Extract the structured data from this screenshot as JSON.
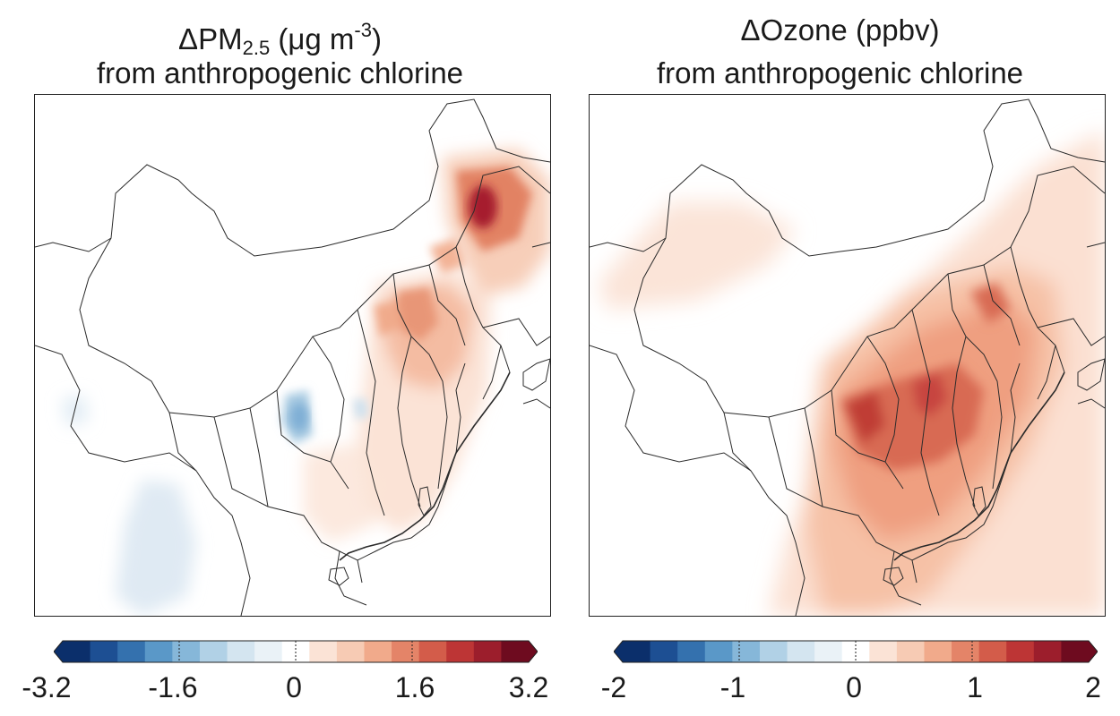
{
  "panels": [
    {
      "title_line1_prefix": "ΔPM",
      "title_line1_sub": "2.5",
      "title_line1_mid": " (μg m",
      "title_line1_sup": "-3",
      "title_line1_suffix": ")",
      "title_line2": "from anthropogenic chlorine",
      "colorbar": {
        "min": -3.2,
        "max": 3.2,
        "ticks": [
          "-3.2",
          "-1.6",
          "0",
          "1.6",
          "3.2"
        ]
      }
    },
    {
      "title_line1": "ΔOzone (ppbv)",
      "title_line2": "from anthropogenic chlorine",
      "colorbar": {
        "min": -2,
        "max": 2,
        "ticks": [
          "-2",
          "-1",
          "0",
          "1",
          "2"
        ]
      }
    }
  ],
  "colors": {
    "diverging_scale": [
      "#0b2f6b",
      "#1d4f93",
      "#3471ae",
      "#5a98c8",
      "#86b7d9",
      "#b1d1e6",
      "#d4e5f0",
      "#eaf2f7",
      "#ffffff",
      "#fbe3d6",
      "#f7cbb4",
      "#f1aa8b",
      "#e48468",
      "#d35c4a",
      "#bd3535",
      "#9c1e2c",
      "#6e0b1f"
    ]
  }
}
